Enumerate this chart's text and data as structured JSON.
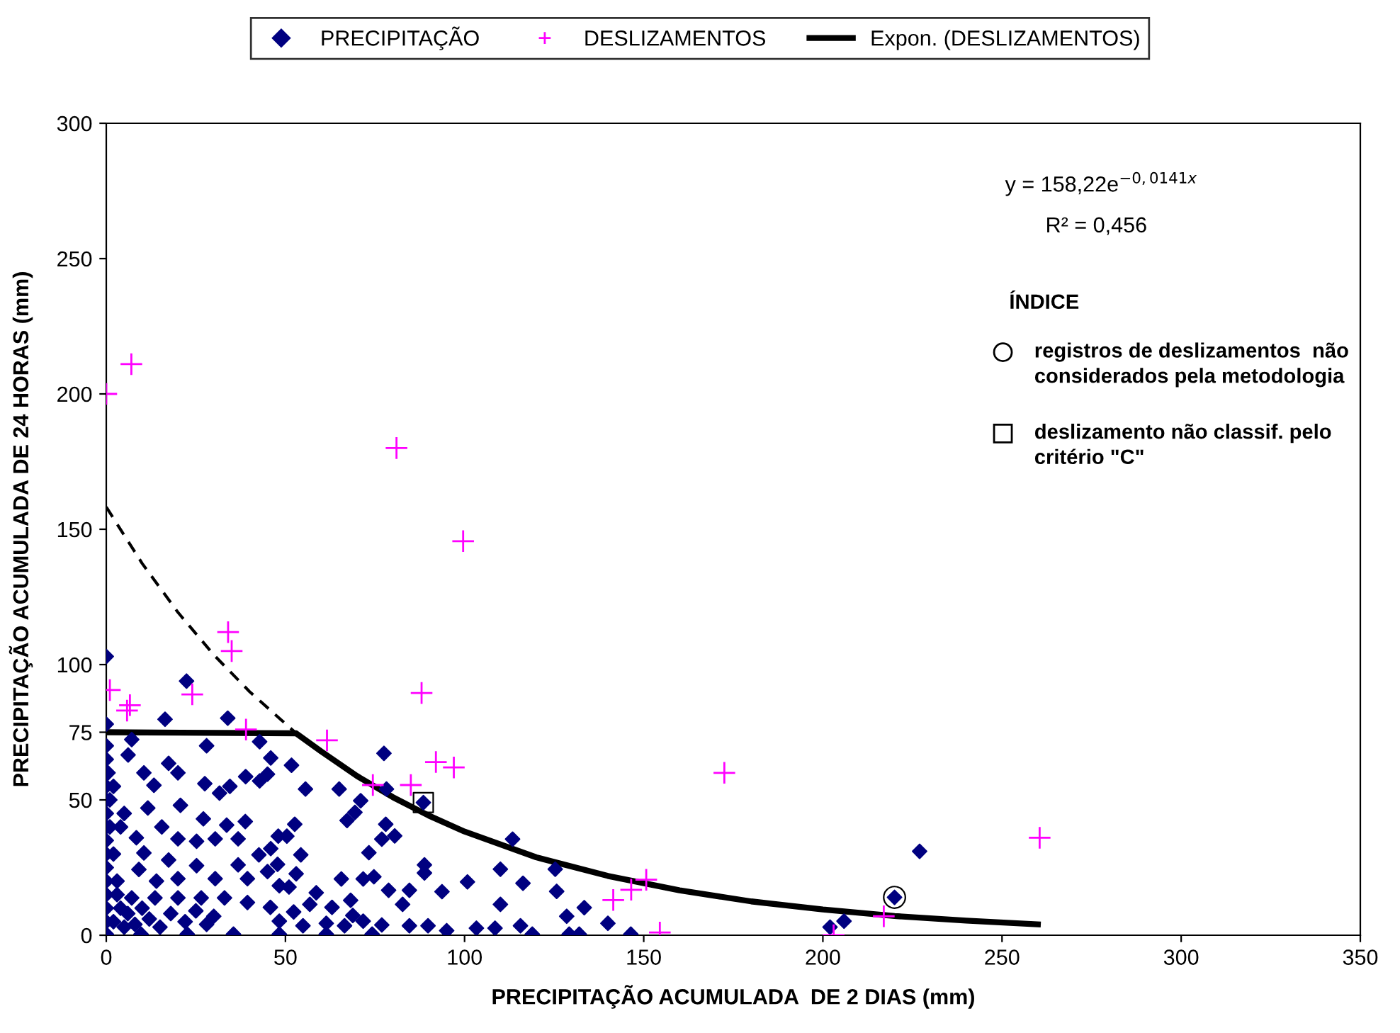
{
  "chart_data": {
    "type": "scatter",
    "xlabel": "PRECIPITAÇÃO ACUMULADA  DE 2 DIAS (mm)",
    "ylabel": "PRECIPITAÇÃO ACUMULADA DE 24 HORAS (mm)",
    "xlim": [
      0,
      350
    ],
    "xticks": [
      0,
      50,
      100,
      150,
      200,
      250,
      300,
      350
    ],
    "ylim": [
      0,
      300
    ],
    "yticks": [
      0,
      50,
      75,
      100,
      150,
      200,
      250,
      300
    ],
    "grid": false,
    "legend": "top",
    "annotations": [
      "y = 158,22e$^{−0,0141x}$",
      "R² = 0,456",
      "ÍNDICE",
      "registros de deslizamentos  não\nconsiderados pela metodologia",
      "deslizamento não classif. pelo\ncritério \"C\""
    ],
    "series": [
      {
        "name": "PRECIPITAÇÃO",
        "marker": "diamond",
        "color": "#000080",
        "x": [
          0,
          22.4,
          16.4,
          33.9,
          28,
          42.8,
          45.9,
          51.7,
          77.5,
          65,
          55.6,
          78.2,
          88.5,
          71,
          67.2,
          69.4,
          78,
          76.9,
          80.5,
          73.3,
          88.8,
          88.8,
          113.4,
          110,
          100.8,
          116.3,
          125.3,
          125.7,
          110,
          93.7,
          128.5,
          133.4,
          140,
          115.6,
          129.2,
          132,
          118.9,
          146.4,
          108.5,
          103.3,
          78.8,
          84.6,
          82.7,
          74.7,
          71.7,
          65.6,
          68.2,
          63,
          68.8,
          51,
          47.8,
          53,
          54.3,
          52.6,
          50.4,
          48,
          45,
          42.8,
          38.9,
          31.6,
          34.5,
          27.5,
          20,
          17.4,
          13.3,
          10.5,
          6.1,
          7.1,
          11.6,
          20.7,
          27.1,
          38.8,
          33.6,
          15.5,
          8.4,
          20,
          25.2,
          30.4,
          36.8,
          45.9,
          42.6,
          36.8,
          25.2,
          17.4,
          10.5,
          9.1,
          20,
          30.4,
          39.4,
          45,
          48.3,
          58.6,
          56.8,
          52.3,
          45.8,
          39.4,
          33,
          26.5,
          20,
          13.6,
          7.1,
          48.3,
          54.9,
          61.4,
          66.5,
          71.7,
          76.9,
          84.6,
          89.8,
          95,
          74.2,
          61.4,
          48.3,
          35.5,
          22.6,
          9.7,
          0,
          0,
          0,
          0,
          0,
          0,
          0,
          0,
          0,
          0,
          0,
          0,
          0,
          0,
          0,
          2,
          4,
          5,
          3,
          2,
          1,
          1,
          0.5,
          3,
          6,
          8,
          10,
          12,
          15,
          14,
          18,
          22,
          25,
          28,
          30,
          5,
          4,
          2,
          202,
          205.9,
          220,
          227
        ],
        "values": [
          103,
          93.9,
          79.8,
          80.2,
          70,
          71.5,
          65.5,
          62.8,
          67.2,
          54,
          54,
          54,
          49,
          49.7,
          42.4,
          45.4,
          41,
          35.5,
          36.7,
          30.5,
          26,
          23,
          35.5,
          24.4,
          19.7,
          19.2,
          24.4,
          16.2,
          11.4,
          16.1,
          7,
          10.2,
          4.4,
          3.5,
          0.4,
          0.4,
          0.4,
          0.4,
          2.6,
          2.6,
          16.6,
          16.6,
          11.4,
          21.6,
          20.8,
          20.8,
          12.9,
          10.3,
          7.3,
          17.8,
          26.2,
          22.7,
          29.7,
          41,
          36.6,
          36.6,
          59.5,
          57,
          58.6,
          52.5,
          55,
          56,
          60,
          63.5,
          55.4,
          60,
          66.6,
          72.3,
          47,
          48,
          43,
          42,
          40.7,
          40,
          36,
          35.6,
          34.7,
          35.6,
          35.6,
          32,
          29.7,
          26,
          25.7,
          27.8,
          30.4,
          24.3,
          20.9,
          20.9,
          20.9,
          23.5,
          18.3,
          15.7,
          11.4,
          8.6,
          10.3,
          12.1,
          13.8,
          13.8,
          13.8,
          13.8,
          13.8,
          5.2,
          3.5,
          4.4,
          3.5,
          5.2,
          3.8,
          3.5,
          3.5,
          1.7,
          0.4,
          0.4,
          0.4,
          0.4,
          0.4,
          0.4,
          0.4,
          5,
          10,
          15,
          20,
          25,
          30,
          35,
          40,
          45,
          50,
          55,
          65,
          70,
          78,
          5,
          10,
          3,
          20,
          30,
          40,
          50,
          60,
          15,
          8,
          4,
          10,
          6,
          3,
          20,
          8,
          5,
          9,
          4,
          7,
          45,
          40,
          55,
          3,
          5.2,
          14,
          31
        ]
      },
      {
        "name": "DESLIZAMENTOS",
        "marker": "cross",
        "color": "#ff00ff",
        "x": [
          0,
          7,
          81,
          99.6,
          34,
          35,
          1,
          5.8,
          6.6,
          24,
          39,
          88,
          61.6,
          92,
          97,
          85,
          74.4,
          172.5,
          260.5,
          150.7,
          146.5,
          141.5,
          154.5,
          203,
          217
        ],
        "values": [
          200,
          211,
          180,
          145.6,
          112,
          105,
          90.6,
          83,
          85,
          89,
          76,
          89.5,
          72,
          64,
          62,
          55.5,
          55.5,
          60,
          36,
          20.5,
          16.8,
          13,
          1,
          0,
          7
        ]
      },
      {
        "name": "Expon. (DESLIZAMENTOS)",
        "type": "line",
        "marker": "none",
        "line_style": "solid",
        "color": "#000000",
        "x": [
          0,
          53,
          60,
          70,
          80,
          90,
          100,
          120,
          140,
          160,
          180,
          200,
          220,
          240,
          260
        ],
        "values": [
          75,
          74.6,
          67.9,
          58.8,
          51,
          44.2,
          38.3,
          28.8,
          21.9,
          16.6,
          12.5,
          9.5,
          7.1,
          5.4,
          4
        ]
      },
      {
        "type": "line",
        "marker": "none",
        "line_style": "dashed",
        "color": "#000000",
        "x": [
          0,
          10,
          20,
          30,
          40,
          53
        ],
        "values": [
          158.2,
          137.4,
          119.3,
          103.6,
          90,
          74.6
        ]
      },
      {
        "marker": "circle",
        "color": "#000000",
        "x": [
          220
        ],
        "values": [
          14
        ]
      },
      {
        "marker": "square",
        "color": "#000000",
        "x": [
          88.5
        ],
        "values": [
          49
        ]
      }
    ]
  }
}
